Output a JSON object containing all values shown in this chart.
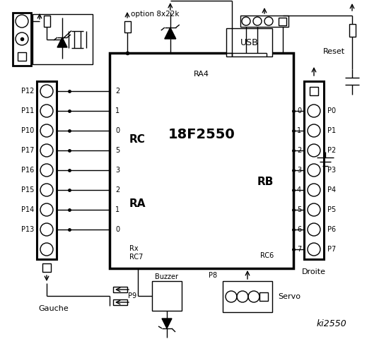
{
  "title": "ki2550",
  "bg_color": "#ffffff",
  "line_color": "#000000",
  "ic_label": "18F2550",
  "ic_sublabel": "RA4",
  "rc_label": "RC",
  "ra_label": "RA",
  "rb_label": "RB",
  "gauche_label": "Gauche",
  "droite_label": "Droite",
  "option_label": "option 8x22k",
  "usb_label": "USB",
  "reset_label": "Reset",
  "buzzer_label": "Buzzer",
  "servo_label": "Servo",
  "p8_label": "P8",
  "p9_label": "P9",
  "left_pin_labels": [
    "P12",
    "P11",
    "P10",
    "P17",
    "P16",
    "P15",
    "P14",
    "P13"
  ],
  "right_pin_labels": [
    "P0",
    "P1",
    "P2",
    "P3",
    "P4",
    "P5",
    "P6",
    "P7"
  ],
  "rc_pin_nums": [
    "2",
    "1",
    "0",
    "5",
    "3",
    "2",
    "1",
    "0"
  ],
  "rb_pin_nums": [
    "0",
    "1",
    "2",
    "3",
    "4",
    "5",
    "6",
    "7"
  ]
}
